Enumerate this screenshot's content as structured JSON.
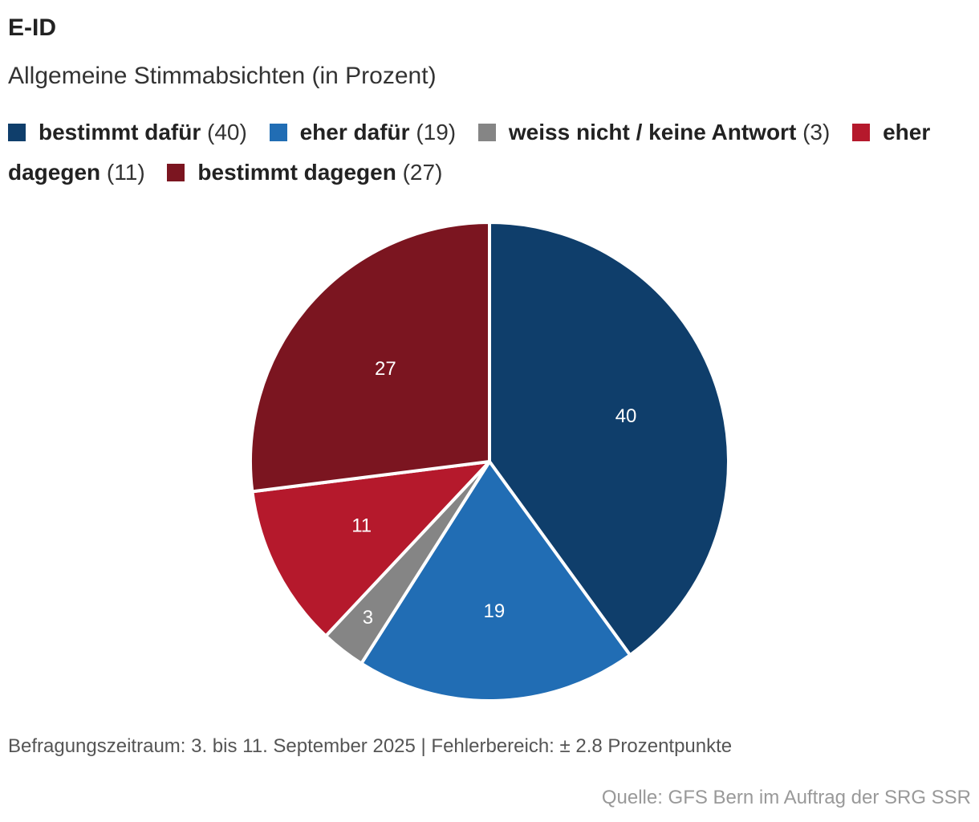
{
  "header": {
    "title": "E-ID",
    "subtitle": "Allgemeine Stimmabsichten (in Prozent)"
  },
  "chart_data": {
    "type": "pie",
    "title": "E-ID",
    "subtitle": "Allgemeine Stimmabsichten (in Prozent)",
    "legend_position": "top",
    "slices": [
      {
        "label": "bestimmt dafür",
        "value": 40,
        "display": "40",
        "legend_value": "(40)",
        "color": "#0f3e6b"
      },
      {
        "label": "eher dafür",
        "value": 19,
        "display": "19",
        "legend_value": "(19)",
        "color": "#216db4"
      },
      {
        "label": "weiss nicht / keine Antwort",
        "value": 3,
        "display": "3",
        "legend_value": "(3)",
        "color": "#858585"
      },
      {
        "label": "eher dagegen",
        "value": 11,
        "display": "11",
        "legend_value": "(11)",
        "color": "#b5192c"
      },
      {
        "label": "bestimmt dagegen",
        "value": 27,
        "display": "27",
        "legend_value": "(27)",
        "color": "#7b1520"
      }
    ]
  },
  "footer": {
    "note": "Befragungszeitraum: 3. bis 11. September 2025 | Fehlerbereich: ± 2.8 Prozentpunkte",
    "source": "Quelle: GFS Bern im Auftrag der SRG SSR"
  }
}
